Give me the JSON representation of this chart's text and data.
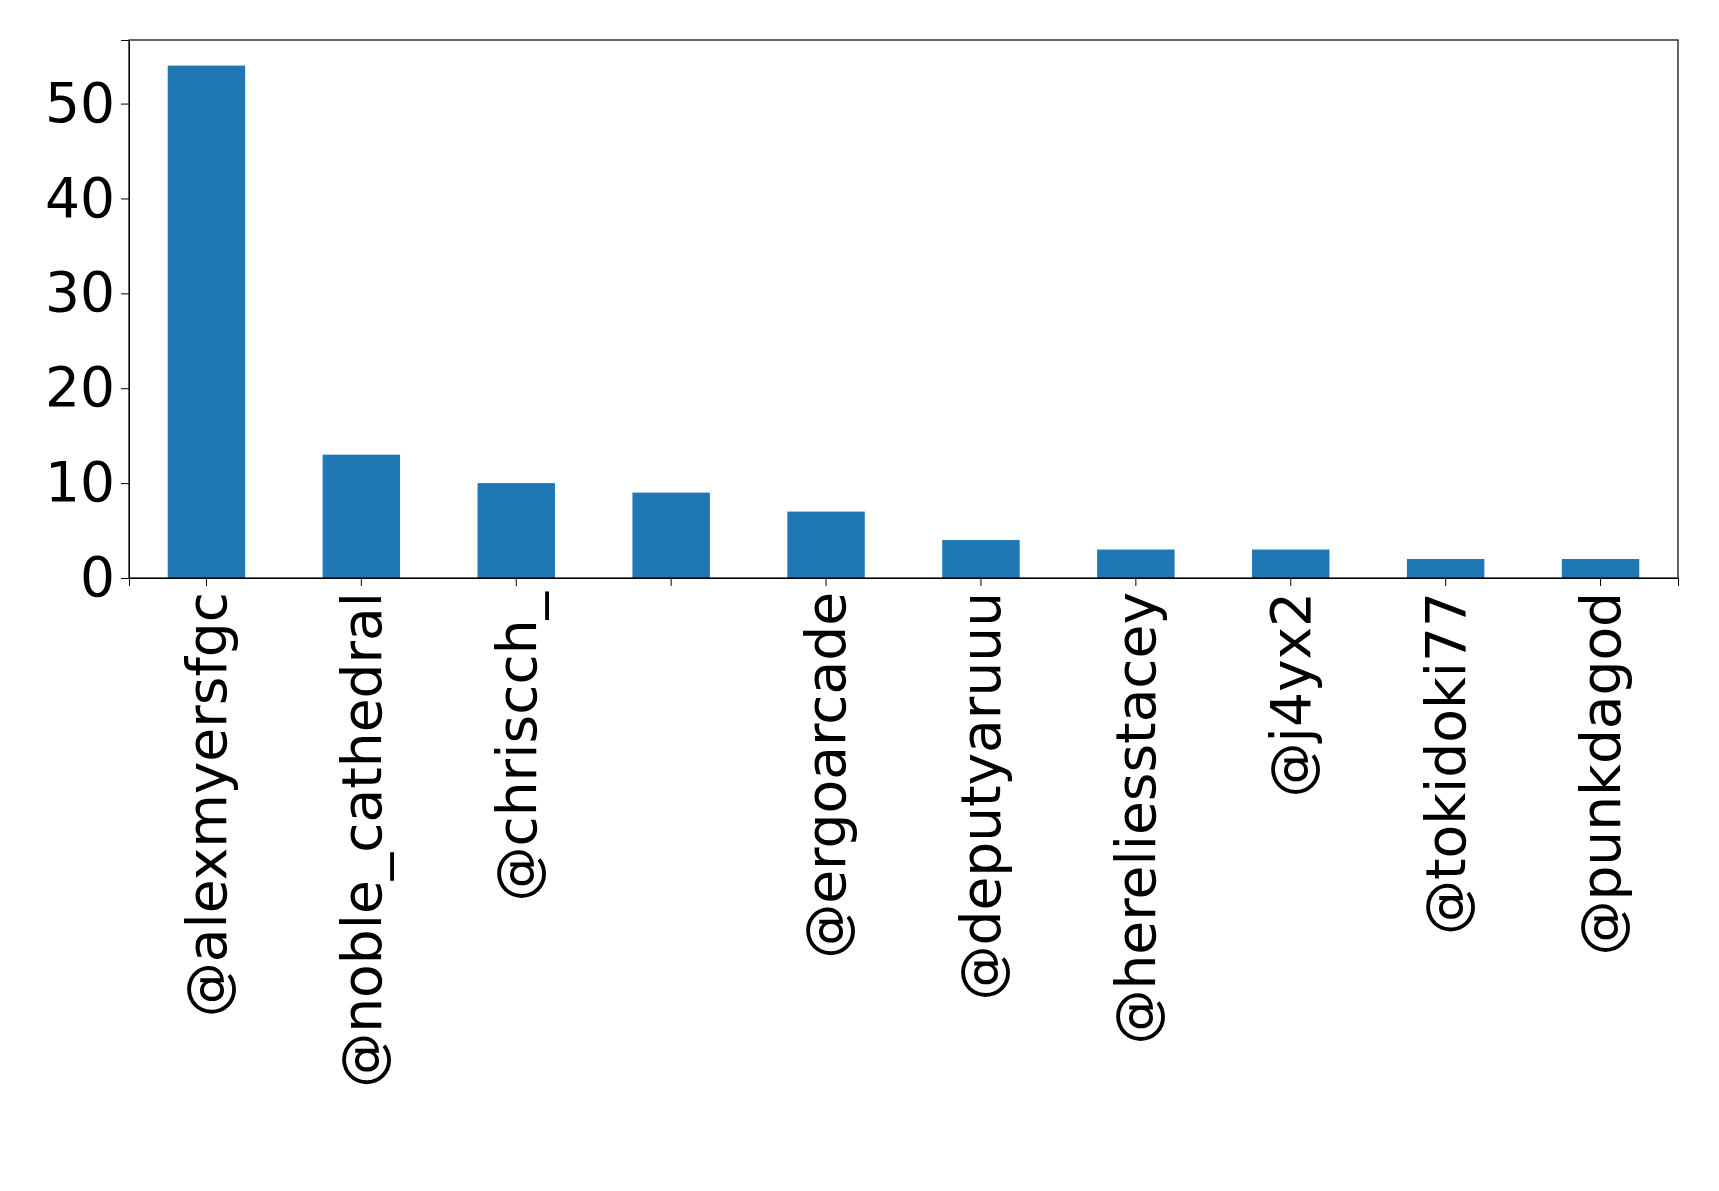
{
  "chart_data": {
    "type": "bar",
    "categories": [
      "@alexmyersfgc",
      "@noble_cathedral",
      "@chriscch_",
      null,
      "@ergoarcade",
      "@deputyaruuu",
      "@hereliesstacey",
      "@j4yx2",
      "@tokidoki77",
      "@punkdagod"
    ],
    "values": [
      54,
      13,
      10,
      9,
      7,
      4,
      3,
      3,
      2,
      2
    ],
    "color": "#1f77b4",
    "ylim": [
      0,
      56.7
    ],
    "yticks": [
      0,
      10,
      20,
      30,
      40,
      50
    ]
  }
}
